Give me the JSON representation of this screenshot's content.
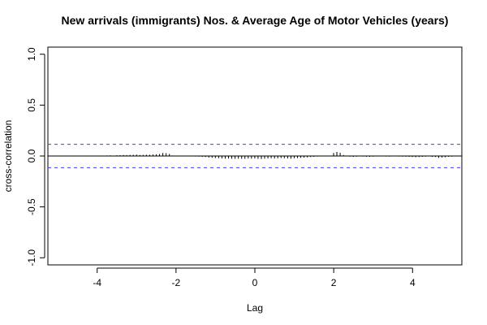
{
  "chart_data": {
    "type": "bar",
    "title": "New arrivals (immigrants) Nos. & Average Age of Motor Vehicles (years)",
    "xlabel": "Lag",
    "ylabel": "cross-correlation",
    "xlim": [
      -5.25,
      5.25
    ],
    "ylim": [
      -1.07,
      1.07
    ],
    "xticks": [
      -4,
      -2,
      0,
      2,
      4
    ],
    "yticks": [
      -1.0,
      -0.5,
      0.0,
      0.5,
      1.0
    ],
    "xtick_labels": [
      "-4",
      "-2",
      "0",
      "2",
      "4"
    ],
    "ytick_labels": [
      "-1.0",
      "-0.5",
      "0.0",
      "0.5",
      "1.0"
    ],
    "confidence_bound": 0.115,
    "lag_step": 0.0833,
    "lag_range": [
      -5,
      5
    ],
    "series": [
      {
        "values": [
          0.0,
          -0.002,
          0.001,
          -0.001,
          0.001,
          0.0,
          -0.002,
          0.002,
          0.001,
          -0.001,
          0.002,
          0.001,
          0.003,
          0.001,
          0.004,
          0.005,
          0.006,
          0.004,
          0.007,
          0.008,
          0.01,
          0.009,
          0.011,
          0.012,
          0.014,
          0.01,
          0.011,
          0.013,
          0.012,
          0.015,
          0.016,
          0.02,
          0.03,
          0.028,
          0.02,
          0.005,
          0.003,
          -0.002,
          0.004,
          0.0,
          0.001,
          -0.003,
          -0.005,
          -0.006,
          -0.008,
          -0.01,
          -0.015,
          -0.018,
          -0.02,
          -0.022,
          -0.024,
          -0.026,
          -0.025,
          -0.027,
          -0.028,
          -0.026,
          -0.027,
          -0.028,
          -0.025,
          -0.026,
          -0.024,
          -0.028,
          -0.03,
          -0.026,
          -0.024,
          -0.022,
          -0.025,
          -0.023,
          -0.02,
          -0.022,
          -0.024,
          -0.026,
          -0.022,
          -0.02,
          -0.018,
          -0.016,
          -0.014,
          -0.01,
          -0.008,
          -0.005,
          0.002,
          -0.004,
          0.003,
          0.0,
          0.03,
          0.04,
          0.032,
          0.01,
          -0.004,
          -0.006,
          -0.008,
          -0.006,
          -0.004,
          -0.005,
          -0.007,
          -0.008,
          -0.006,
          -0.003,
          -0.004,
          -0.002,
          -0.005,
          -0.006,
          -0.004,
          -0.003,
          -0.005,
          -0.006,
          -0.007,
          -0.008,
          -0.01,
          -0.012,
          -0.01,
          -0.008,
          -0.006,
          -0.004,
          -0.008,
          -0.01,
          -0.018,
          -0.015,
          -0.012,
          -0.008,
          -0.006
        ]
      }
    ],
    "grid": false,
    "legend": "none",
    "colors": {
      "bars": "#000000",
      "bounds": "#3a3aff",
      "zero_line": "#000000",
      "frame": "#000000"
    }
  }
}
